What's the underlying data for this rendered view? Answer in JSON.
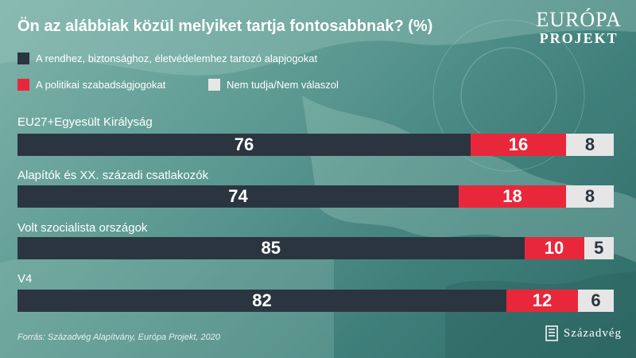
{
  "chart_data": {
    "type": "bar",
    "orientation": "horizontal-stacked",
    "title": "Ön az alábbiak közül melyiket tartja fontosabbnak? (%)",
    "legend": [
      {
        "name": "A rendhez, biztonsághoz, életvédelemhez tartozó alapjogokat",
        "color": "#2b3540"
      },
      {
        "name": "A politikai szabadságjogokat",
        "color": "#e8283a"
      },
      {
        "name": "Nem tudja/Nem válaszol",
        "color": "#e6e6e6"
      }
    ],
    "categories": [
      "EU27+Egyesült Királyság",
      "Alapítók és XX. századi csatlakozók",
      "Volt szocialista országok",
      "V4"
    ],
    "series": [
      {
        "name": "A rendhez, biztonsághoz, életvédelemhez tartozó alapjogokat",
        "values": [
          76,
          74,
          85,
          82
        ]
      },
      {
        "name": "A politikai szabadságjogokat",
        "values": [
          16,
          18,
          10,
          12
        ]
      },
      {
        "name": "Nem tudja/Nem válaszol",
        "values": [
          8,
          8,
          5,
          6
        ]
      }
    ],
    "xlim": [
      0,
      100
    ]
  },
  "source": "Forrás: Századvég Alapítvány, Európa Projekt, 2020",
  "logo_top": {
    "line1": "EURÓPA",
    "line2": "PROJEKT"
  },
  "logo_bottom": "Századvég"
}
